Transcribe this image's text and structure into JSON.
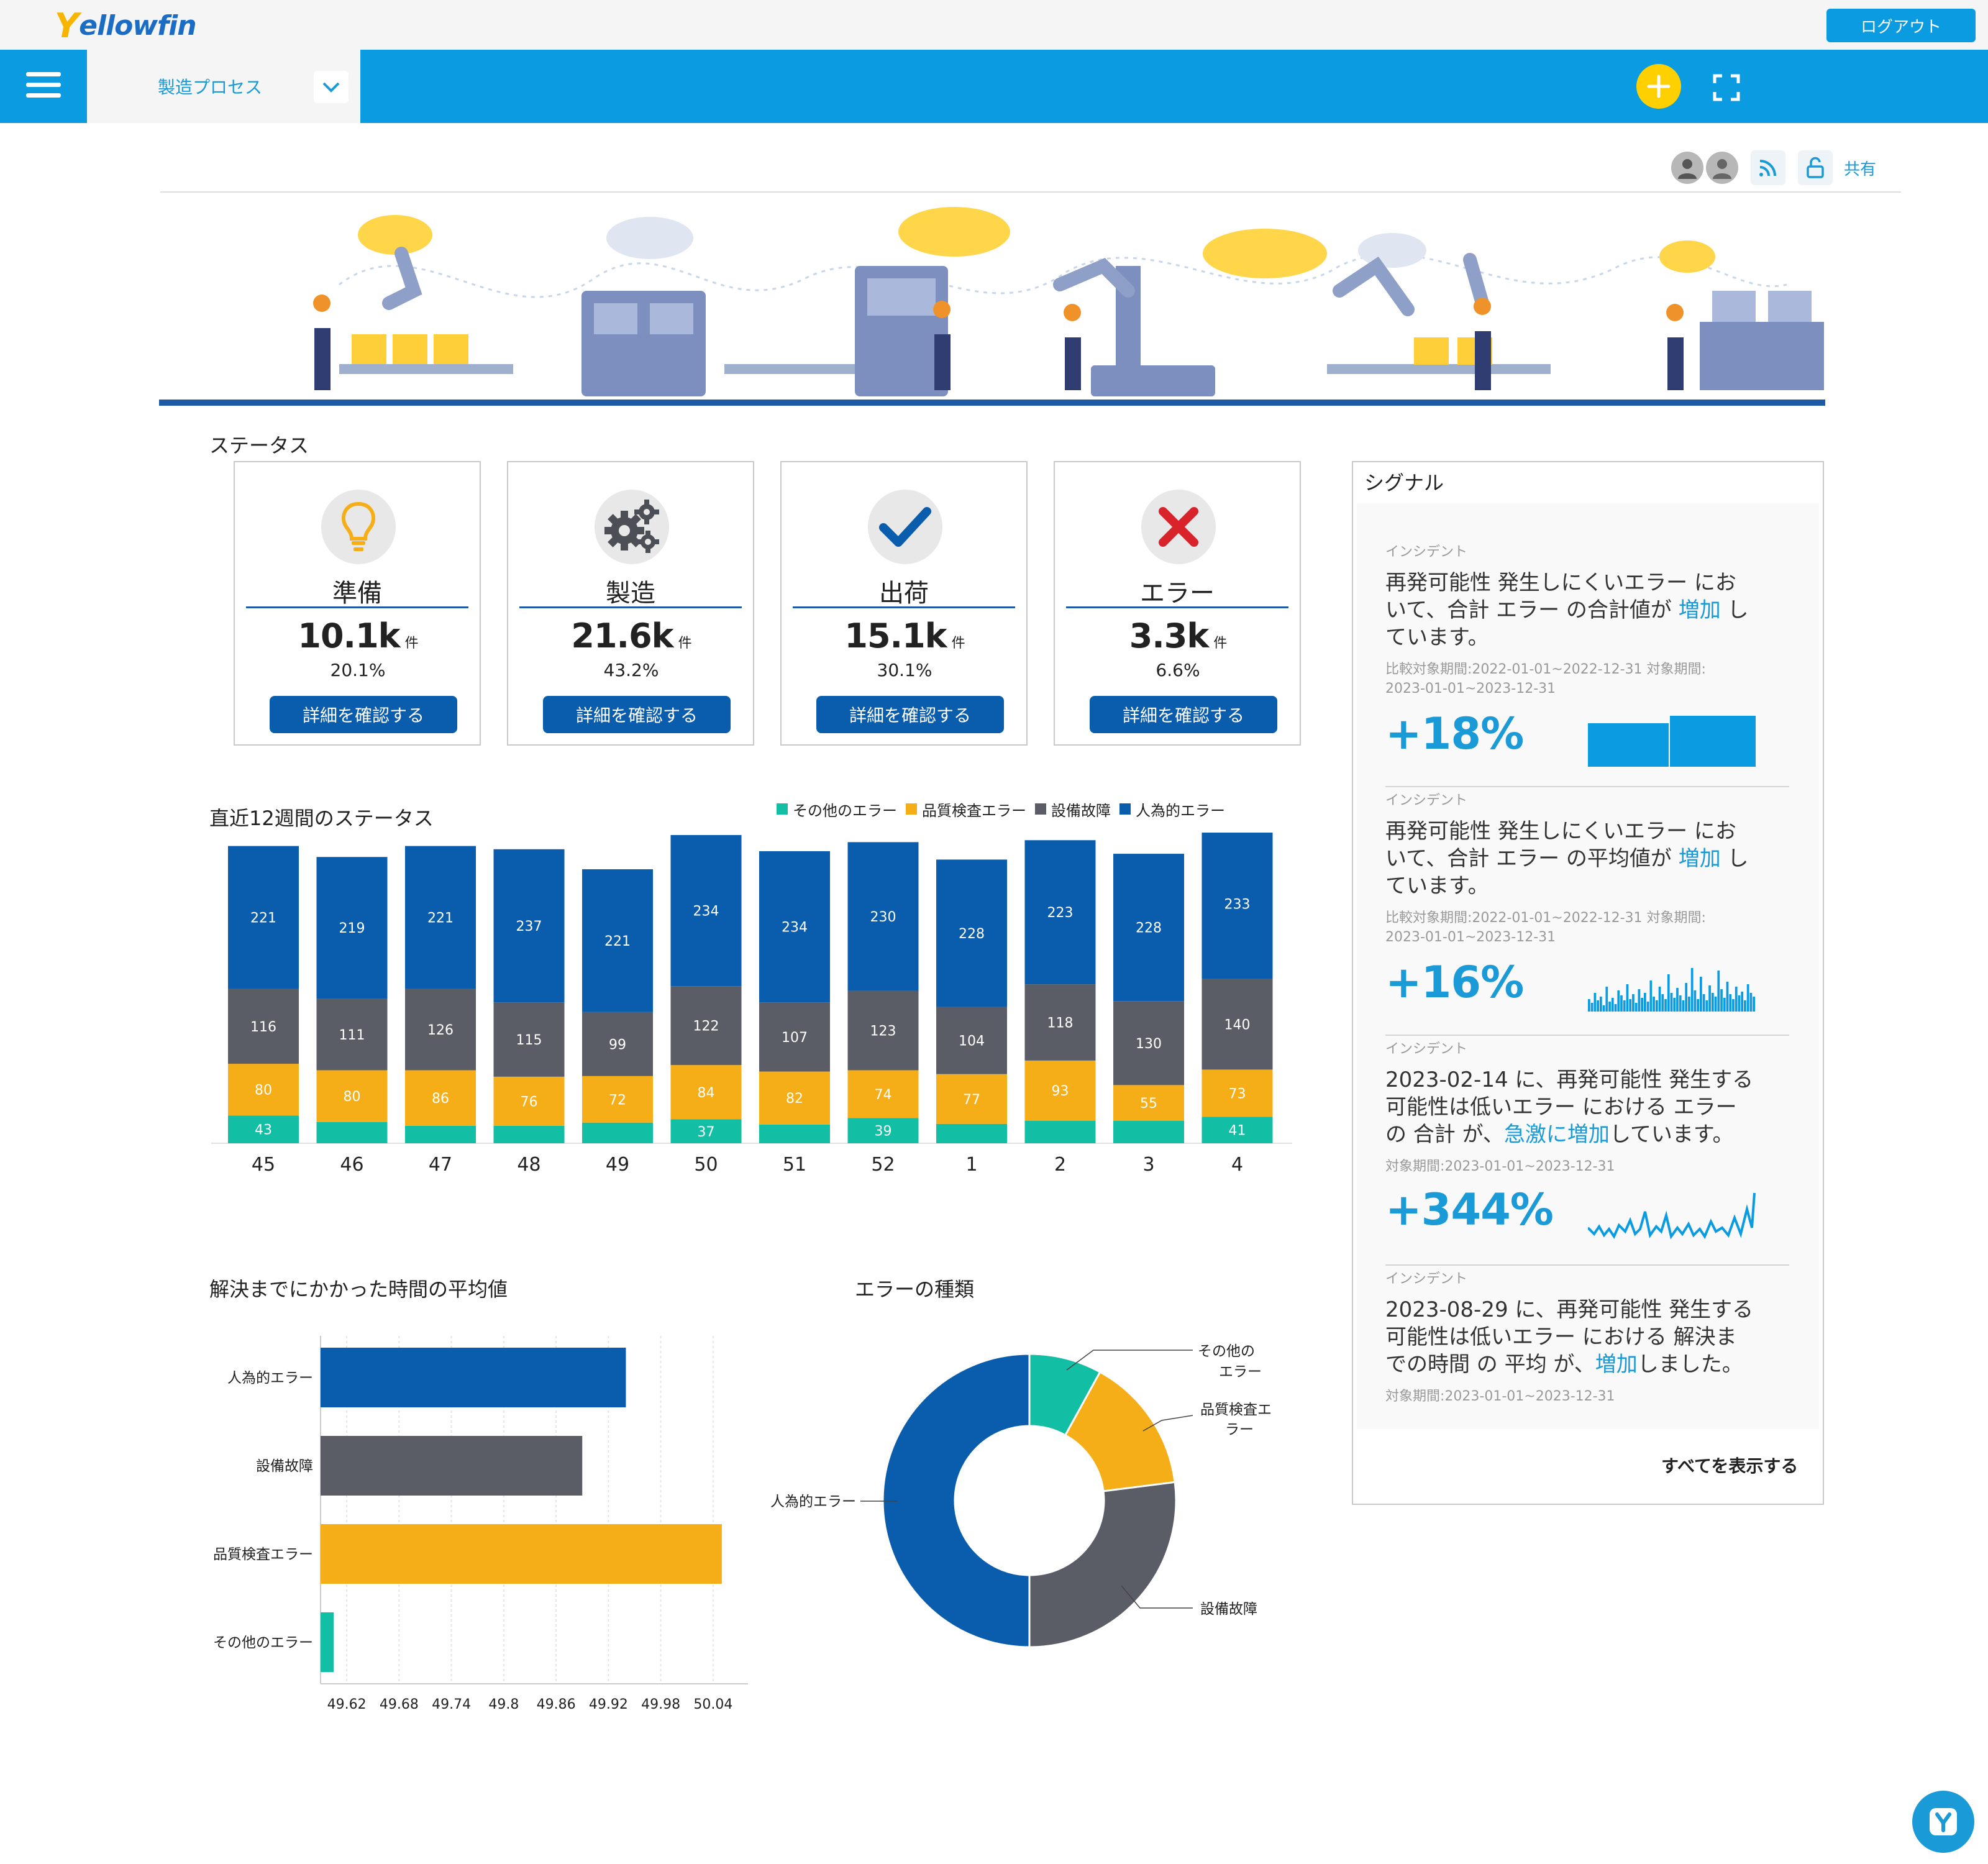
{
  "header": {
    "logo_y": "Y",
    "logo_rest": "ellowfin",
    "logout_label": "ログアウト"
  },
  "nav": {
    "tab_label": "製造プロセス"
  },
  "toolbar": {
    "share_label": "共有"
  },
  "status": {
    "title": "ステータス",
    "cards": [
      {
        "label": "準備",
        "value": "10.1k",
        "unit": "件",
        "percent": "20.1%",
        "button": "詳細を確認する",
        "icon": "lightbulb-icon"
      },
      {
        "label": "製造",
        "value": "21.6k",
        "unit": "件",
        "percent": "43.2%",
        "button": "詳細を確認する",
        "icon": "gears-icon"
      },
      {
        "label": "出荷",
        "value": "15.1k",
        "unit": "件",
        "percent": "30.1%",
        "button": "詳細を確認する",
        "icon": "checkmark-icon"
      },
      {
        "label": "エラー",
        "value": "3.3k",
        "unit": "件",
        "percent": "6.6%",
        "button": "詳細を確認する",
        "icon": "x-icon"
      }
    ]
  },
  "colors": {
    "other": "#12bfa5",
    "quality": "#f6ae18",
    "equipment": "#5a5d66",
    "human": "#0a5cac",
    "accent": "#0a9be0"
  },
  "weekly": {
    "title": "直近12週間のステータス",
    "legend": [
      "その他のエラー",
      "品質検査エラー",
      "設備故障",
      "人為的エラー"
    ]
  },
  "resolution": {
    "title": "解決までにかかった時間の平均値"
  },
  "errors": {
    "title": "エラーの種類"
  },
  "chart_data": [
    {
      "type": "bar",
      "stacked": true,
      "title": "直近12週間のステータス",
      "categories": [
        "45",
        "46",
        "47",
        "48",
        "49",
        "50",
        "51",
        "52",
        "1",
        "2",
        "3",
        "4"
      ],
      "series": [
        {
          "name": "その他のエラー",
          "values": [
            43,
            33,
            27,
            27,
            32,
            37,
            29,
            39,
            30,
            35,
            35,
            41
          ],
          "labels": [
            "43",
            "",
            "",
            "",
            "",
            "37",
            "",
            "39",
            "",
            "",
            "",
            "41"
          ]
        },
        {
          "name": "品質検査エラー",
          "values": [
            80,
            80,
            86,
            76,
            72,
            84,
            82,
            74,
            77,
            93,
            55,
            73
          ],
          "labels": [
            "80",
            "80",
            "86",
            "76",
            "72",
            "84",
            "82",
            "74",
            "77",
            "93",
            "55",
            "73"
          ]
        },
        {
          "name": "設備故障",
          "values": [
            116,
            111,
            126,
            115,
            99,
            122,
            107,
            123,
            104,
            118,
            130,
            140
          ],
          "labels": [
            "116",
            "111",
            "126",
            "115",
            "99",
            "122",
            "107",
            "123",
            "104",
            "118",
            "130",
            "140"
          ]
        },
        {
          "name": "人為的エラー",
          "values": [
            221,
            219,
            221,
            237,
            221,
            234,
            234,
            230,
            228,
            223,
            228,
            233
          ],
          "labels": [
            "221",
            "219",
            "221",
            "237",
            "221",
            "234",
            "234",
            "230",
            "228",
            "223",
            "228",
            "233"
          ]
        }
      ]
    },
    {
      "type": "bar",
      "orientation": "horizontal",
      "title": "解決までにかかった時間の平均値",
      "categories": [
        "人為的エラー",
        "設備故障",
        "品質検査エラー",
        "その他のエラー"
      ],
      "values": [
        49.94,
        49.89,
        50.05,
        49.605
      ],
      "xlim": [
        49.59,
        50.08
      ],
      "xticks": [
        "49.62",
        "49.68",
        "49.74",
        "49.8",
        "49.86",
        "49.92",
        "49.98",
        "50.04"
      ],
      "xtick_values": [
        49.62,
        49.68,
        49.74,
        49.8,
        49.86,
        49.92,
        49.98,
        50.04
      ]
    },
    {
      "type": "pie",
      "donut": true,
      "title": "エラーの種類",
      "labels": [
        "その他のエラー",
        "品質検査エラー",
        "設備故障",
        "人為的エラー"
      ],
      "values": [
        8,
        15,
        27,
        50
      ]
    }
  ],
  "signals": {
    "title": "シグナル",
    "show_all": "すべてを表示する",
    "items": [
      {
        "tag": "インシデント",
        "msg_a": "再発可能性 発生しにくいエラー にお",
        "msg_b": "いて、合計 エラー の合計値が ",
        "msg_hl": "増加",
        "msg_c": " し",
        "msg_d": "ています。",
        "period_a": "比較対象期間:2022-01-01~2022-12-31 対象期間:",
        "period_b": "2023-01-01~2023-12-31",
        "value": "+18%"
      },
      {
        "tag": "インシデント",
        "msg_a": "再発可能性 発生しにくいエラー にお",
        "msg_b": "いて、合計 エラー の平均値が ",
        "msg_hl": "増加",
        "msg_c": " し",
        "msg_d": "ています。",
        "period_a": "比較対象期間:2022-01-01~2022-12-31 対象期間:",
        "period_b": "2023-01-01~2023-12-31",
        "value": "+16%"
      },
      {
        "tag": "インシデント",
        "msg_a": "2023-02-14 に、再発可能性 発生する",
        "msg_b": "可能性は低いエラー における エラー",
        "msg_c": "の 合計 が、",
        "msg_hl": "急激に増加",
        "msg_d": "しています。",
        "period_a": "対象期間:2023-01-01~2023-12-31",
        "value": "+344%"
      },
      {
        "tag": "インシデント",
        "msg_a": "2023-08-29 に、再発可能性 発生する",
        "msg_b": "可能性は低いエラー における 解決ま",
        "msg_c": "での時間 の 平均 が、",
        "msg_hl": "増加",
        "msg_d": "しました。",
        "period_a": "対象期間:2023-01-01~2023-12-31"
      }
    ]
  }
}
